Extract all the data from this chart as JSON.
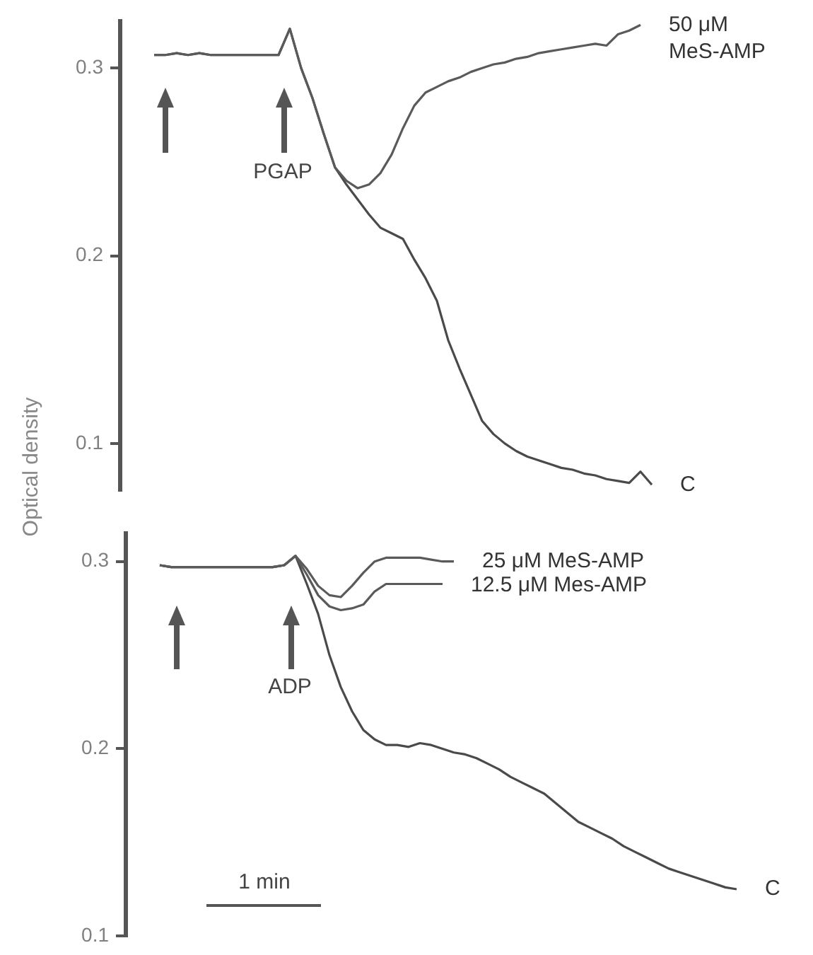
{
  "chart_data": [
    {
      "type": "line",
      "ylabel": "Optical density",
      "categories": [
        null,
        null,
        null,
        null,
        null,
        null,
        null,
        null,
        null,
        null,
        null,
        null,
        null,
        null,
        null,
        null,
        null,
        null,
        null,
        null,
        null,
        null,
        null,
        null,
        null,
        null,
        null,
        null,
        null,
        null,
        null,
        null,
        null,
        null,
        null,
        null,
        null,
        null,
        null,
        null,
        null,
        null,
        null,
        null,
        null,
        null,
        null,
        null
      ],
      "series": [
        {
          "name": "50 μM MeS-AMP",
          "color": "#5a5a5a",
          "values": [
            null,
            null,
            null,
            0.307,
            0.307,
            0.308,
            0.307,
            0.308,
            0.307,
            0.307,
            0.307,
            0.307,
            0.307,
            0.307,
            0.307,
            0.321,
            0.3,
            0.284,
            0.265,
            0.247,
            0.24,
            0.236,
            0.238,
            0.244,
            0.254,
            0.268,
            0.28,
            0.287,
            0.29,
            0.293,
            0.295,
            0.298,
            0.3,
            0.302,
            0.303,
            0.305,
            0.306,
            0.308,
            0.309,
            0.31,
            0.311,
            0.312,
            0.313,
            0.312,
            0.318,
            0.32,
            0.323,
            null
          ]
        },
        {
          "name": "C",
          "color": "#4a4a4a",
          "values": [
            null,
            null,
            null,
            0.307,
            0.307,
            0.308,
            0.307,
            0.308,
            0.307,
            0.307,
            0.307,
            0.307,
            0.307,
            0.307,
            0.307,
            0.321,
            0.3,
            0.284,
            0.265,
            0.247,
            0.238,
            0.23,
            0.222,
            0.215,
            0.212,
            0.209,
            0.198,
            0.188,
            0.176,
            0.155,
            0.14,
            0.126,
            0.112,
            0.105,
            0.1,
            0.096,
            0.093,
            0.091,
            0.089,
            0.087,
            0.086,
            0.084,
            0.083,
            0.081,
            0.08,
            0.079,
            0.085,
            0.078
          ]
        }
      ],
      "ylim": [
        0.075,
        0.325
      ],
      "yticks": [
        0.1,
        0.2,
        0.3
      ],
      "tick_labels": "y",
      "grid": false,
      "legend": false,
      "marker": "none",
      "annotations": [
        "PGAP"
      ]
    },
    {
      "type": "line",
      "categories": [
        null,
        null,
        null,
        null,
        null,
        null,
        null,
        null,
        null,
        null,
        null,
        null,
        null,
        null,
        null,
        null,
        null,
        null,
        null,
        null,
        null,
        null,
        null,
        null,
        null,
        null,
        null,
        null,
        null,
        null,
        null,
        null,
        null,
        null,
        null,
        null,
        null,
        null,
        null,
        null,
        null,
        null,
        null,
        null,
        null,
        null,
        null,
        null,
        null,
        null,
        null,
        null,
        null,
        null,
        null
      ],
      "series": [
        {
          "name": "25 μM MeS-AMP",
          "color": "#5a5a5a",
          "values": [
            null,
            null,
            null,
            0.298,
            0.297,
            0.297,
            0.297,
            0.297,
            0.297,
            0.297,
            0.297,
            0.297,
            0.297,
            0.297,
            0.298,
            0.303,
            0.296,
            0.287,
            0.282,
            0.281,
            0.287,
            0.294,
            0.3,
            0.302,
            0.302,
            0.302,
            0.302,
            0.301,
            0.3,
            0.3,
            null,
            null,
            null,
            null,
            null,
            null,
            null,
            null,
            null,
            null,
            null,
            null,
            null,
            null,
            null,
            null,
            null,
            null,
            null,
            null,
            null,
            null,
            null,
            null,
            null
          ]
        },
        {
          "name": "12.5 μM Mes-AMP",
          "color": "#5a5a5a",
          "values": [
            null,
            null,
            null,
            0.298,
            0.297,
            0.297,
            0.297,
            0.297,
            0.297,
            0.297,
            0.297,
            0.297,
            0.297,
            0.297,
            0.298,
            0.303,
            0.293,
            0.282,
            0.276,
            0.274,
            0.275,
            0.277,
            0.284,
            0.288,
            0.288,
            0.288,
            0.288,
            0.288,
            0.288,
            null,
            null,
            null,
            null,
            null,
            null,
            null,
            null,
            null,
            null,
            null,
            null,
            null,
            null,
            null,
            null,
            null,
            null,
            null,
            null,
            null,
            null,
            null,
            null,
            null,
            null
          ]
        },
        {
          "name": "C",
          "color": "#4a4a4a",
          "values": [
            null,
            null,
            null,
            0.298,
            0.297,
            0.297,
            0.297,
            0.297,
            0.297,
            0.297,
            0.297,
            0.297,
            0.297,
            0.297,
            0.298,
            0.303,
            0.288,
            0.272,
            0.25,
            0.233,
            0.22,
            0.21,
            0.205,
            0.202,
            0.202,
            0.201,
            0.203,
            0.202,
            0.2,
            0.198,
            0.197,
            0.195,
            0.192,
            0.189,
            0.185,
            0.182,
            0.179,
            0.176,
            0.171,
            0.166,
            0.161,
            0.158,
            0.155,
            0.152,
            0.148,
            0.145,
            0.142,
            0.139,
            0.136,
            0.134,
            0.132,
            0.13,
            0.128,
            0.126,
            0.125
          ]
        }
      ],
      "ylim": [
        0.1,
        0.315
      ],
      "yticks": [
        0.1,
        0.2,
        0.3
      ],
      "tick_labels": "y",
      "grid": false,
      "legend": false,
      "marker": "none",
      "annotations": [
        "ADP",
        "1 min"
      ]
    }
  ]
}
